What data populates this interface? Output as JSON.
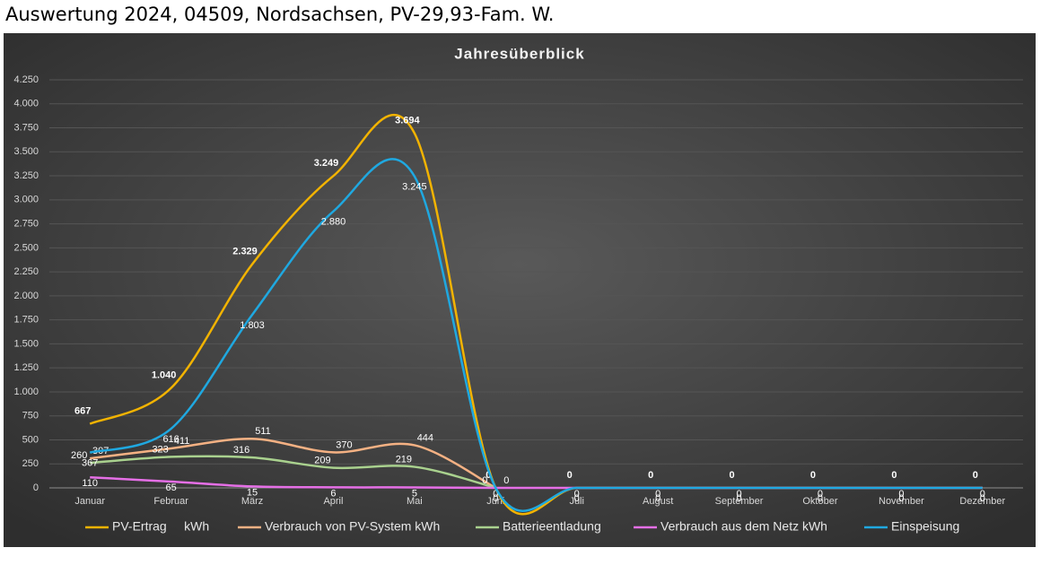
{
  "header": {
    "title": "Auswertung 2024, 04509, Nordsachsen, PV-29,93-Fam. W."
  },
  "chart_data": {
    "type": "line",
    "title": "Jahresüberblick",
    "categories": [
      "Januar",
      "Februar",
      "März",
      "April",
      "Mai",
      "Juni",
      "Juli",
      "August",
      "September",
      "Oktober",
      "November",
      "Dezember"
    ],
    "ylim": [
      0,
      4250
    ],
    "yticks": [
      0,
      250,
      500,
      750,
      {
        "value": 1000,
        "label": "1.000"
      },
      {
        "value": 1250,
        "label": "1.250"
      },
      {
        "value": 1500,
        "label": "1.500"
      },
      {
        "value": 1750,
        "label": "1.750"
      },
      {
        "value": 2000,
        "label": "2.000"
      },
      {
        "value": 2250,
        "label": "2.250"
      },
      {
        "value": 2500,
        "label": "2.500"
      },
      {
        "value": 2750,
        "label": "2.750"
      },
      {
        "value": 3000,
        "label": "3.000"
      },
      {
        "value": 3250,
        "label": "3.250"
      },
      {
        "value": 3500,
        "label": "3.500"
      },
      {
        "value": 3750,
        "label": "3.750"
      },
      {
        "value": 4000,
        "label": "4.000"
      },
      {
        "value": 4250,
        "label": "4.250"
      }
    ],
    "grid": true,
    "smooth": true,
    "legend": "bottom",
    "series": [
      {
        "name": "PV-Ertrag     kWh",
        "color": "#f2b300",
        "values": [
          667,
          1040,
          2329,
          3249,
          3694,
          0,
          0,
          0,
          0,
          0,
          0,
          0
        ],
        "value_labels": [
          "667",
          "1.040",
          "2.329",
          "3.249",
          "3.694",
          "0",
          "0",
          "0",
          "0",
          "0",
          "0",
          "0"
        ]
      },
      {
        "name": "Verbrauch von PV-System kWh",
        "color": "#f4b183",
        "values": [
          307,
          411,
          511,
          370,
          444,
          0,
          null,
          null,
          null,
          null,
          null,
          null
        ]
      },
      {
        "name": "Batterieentladung",
        "color": "#a9d18e",
        "values": [
          260,
          323,
          316,
          209,
          219,
          0,
          null,
          null,
          null,
          null,
          null,
          null
        ]
      },
      {
        "name": "Verbrauch aus dem Netz kWh",
        "color": "#e56fe6",
        "values": [
          110,
          65,
          15,
          6,
          5,
          0,
          0,
          0,
          0,
          0,
          0,
          0
        ]
      },
      {
        "name": "Einspeisung",
        "color": "#1fa8e0",
        "values": [
          367,
          616,
          1803,
          2880,
          3245,
          0,
          0,
          0,
          0,
          0,
          0,
          0
        ],
        "value_labels": [
          "367",
          "616",
          "1.803",
          "2.880",
          "3.245",
          "0",
          "0",
          "0",
          "0",
          "0",
          "0",
          "0"
        ]
      }
    ]
  }
}
